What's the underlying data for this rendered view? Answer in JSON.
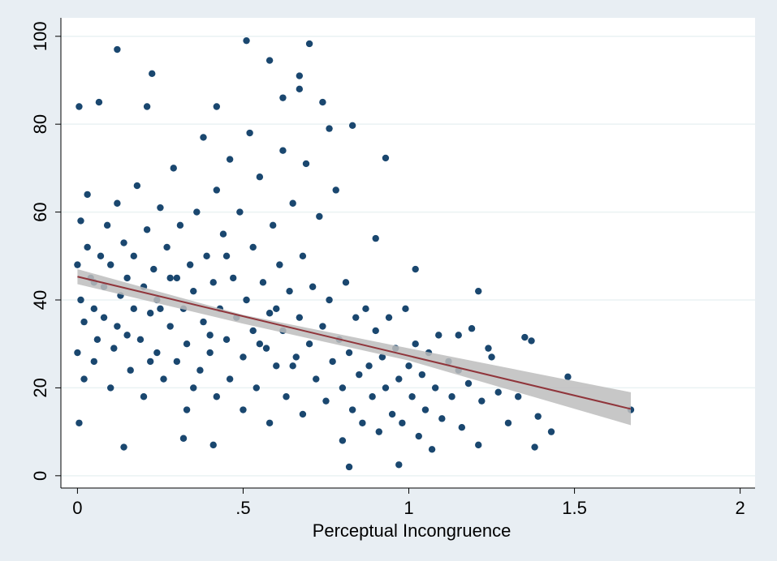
{
  "chart_data": {
    "type": "scatter",
    "x_label": "Perceptual Incongruence",
    "color": "#1a476f",
    "x": [
      0.005,
      0.065,
      0.12,
      0.21,
      0.225,
      0.51,
      0.58,
      0.7,
      0.67,
      0.67,
      0.62,
      0.42,
      0.74,
      0.83,
      0.93,
      0.9,
      1.02,
      1.21,
      1.48,
      1.67,
      1.43,
      1.38,
      0.97,
      0.82,
      0.14,
      0.005,
      0.41,
      1.35,
      1.37,
      1.39,
      1.3,
      1.21,
      1.19,
      1.15,
      1.24,
      0.32,
      0.0,
      0.01,
      0.02,
      0.0,
      0.03,
      0.01,
      0.02,
      0.04,
      0.05,
      0.03,
      0.06,
      0.07,
      0.05,
      0.08,
      0.09,
      0.08,
      0.1,
      0.11,
      0.1,
      0.12,
      0.13,
      0.14,
      0.12,
      0.15,
      0.16,
      0.17,
      0.18,
      0.17,
      0.19,
      0.2,
      0.21,
      0.2,
      0.22,
      0.23,
      0.24,
      0.25,
      0.24,
      0.26,
      0.27,
      0.28,
      0.29,
      0.28,
      0.3,
      0.31,
      0.32,
      0.33,
      0.34,
      0.33,
      0.35,
      0.36,
      0.37,
      0.38,
      0.38,
      0.39,
      0.4,
      0.41,
      0.42,
      0.42,
      0.43,
      0.44,
      0.45,
      0.46,
      0.46,
      0.47,
      0.48,
      0.49,
      0.5,
      0.5,
      0.51,
      0.52,
      0.53,
      0.53,
      0.54,
      0.55,
      0.56,
      0.57,
      0.58,
      0.58,
      0.59,
      0.6,
      0.61,
      0.62,
      0.62,
      0.63,
      0.64,
      0.65,
      0.66,
      0.67,
      0.68,
      0.68,
      0.69,
      0.7,
      0.71,
      0.72,
      0.73,
      0.74,
      0.75,
      0.76,
      0.76,
      0.77,
      0.78,
      0.79,
      0.8,
      0.8,
      0.81,
      0.82,
      0.83,
      0.84,
      0.85,
      0.86,
      0.87,
      0.88,
      0.89,
      0.9,
      0.91,
      0.92,
      0.93,
      0.94,
      0.95,
      0.96,
      0.97,
      0.98,
      0.99,
      1.0,
      1.01,
      1.02,
      1.03,
      1.04,
      1.05,
      1.06,
      1.07,
      1.08,
      1.09,
      1.1,
      1.12,
      1.13,
      1.15,
      1.16,
      1.18,
      1.22,
      1.25,
      1.27,
      1.33,
      0.15,
      0.05,
      0.22,
      0.35,
      0.45,
      0.55,
      0.65,
      0.25,
      0.4,
      0.6,
      0.3
    ],
    "y": [
      84,
      85,
      97,
      84,
      91.5,
      99,
      94.5,
      98.3,
      91,
      88,
      86,
      84,
      85,
      79.7,
      72.3,
      54,
      47,
      42,
      22.5,
      15,
      10,
      6.5,
      2.5,
      2,
      6.5,
      12,
      7,
      31.5,
      30.7,
      13.5,
      12,
      7,
      33.5,
      32,
      29,
      8.5,
      48,
      40,
      35,
      28,
      52,
      58,
      22,
      45,
      38,
      64,
      31,
      50,
      26,
      43,
      57,
      36,
      48,
      29,
      20,
      62,
      41,
      53,
      34,
      45,
      24,
      38,
      66,
      50,
      31,
      43,
      56,
      18,
      37,
      47,
      28,
      61,
      40,
      22,
      52,
      34,
      70,
      45,
      26,
      57,
      38,
      15,
      48,
      30,
      42,
      60,
      24,
      35,
      77,
      50,
      28,
      44,
      65,
      18,
      38,
      55,
      31,
      72,
      22,
      45,
      36,
      60,
      27,
      15,
      40,
      78,
      33,
      52,
      20,
      68,
      44,
      29,
      37,
      12,
      57,
      25,
      48,
      74,
      33,
      18,
      42,
      62,
      27,
      36,
      50,
      14,
      71,
      30,
      43,
      22,
      59,
      34,
      17,
      79,
      40,
      26,
      65,
      31,
      20,
      8,
      44,
      28,
      15,
      36,
      23,
      12,
      38,
      25,
      18,
      33,
      10,
      27,
      20,
      36,
      14,
      29,
      22,
      12,
      38,
      25,
      18,
      30,
      9,
      23,
      15,
      28,
      6,
      20,
      32,
      13,
      26,
      18,
      24,
      11,
      21,
      17,
      27,
      19,
      18,
      32,
      44,
      26,
      20,
      50,
      30,
      25,
      38,
      32,
      38,
      45
    ],
    "fit": {
      "x": [
        0,
        1.67
      ],
      "y": [
        45.3,
        15.2
      ],
      "color": "#90353b"
    },
    "ci": {
      "x": [
        0,
        0.5,
        1,
        1.67
      ],
      "lower": [
        43.6,
        34.6,
        26.2,
        11.5
      ],
      "upper": [
        47.0,
        36.6,
        29.0,
        19.0
      ],
      "color": "#bdbdbd"
    },
    "xlim": [
      -0.05,
      2.045
    ],
    "ylim": [
      -2.8,
      104.2
    ],
    "xticks": [
      0,
      {
        "value": 0.5,
        "label": ".5"
      },
      1,
      1.5,
      2
    ],
    "yticks": [
      0,
      20,
      40,
      60,
      80,
      100
    ],
    "grid": true
  }
}
